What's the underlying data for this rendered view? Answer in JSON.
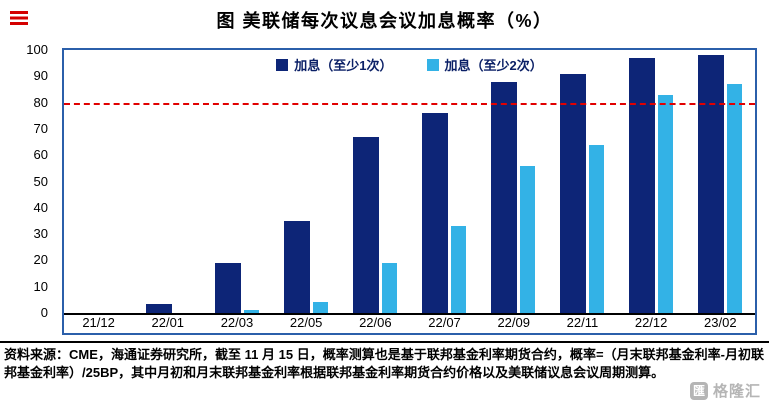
{
  "header": {
    "title": "图 美联储每次议息会议加息概率（%）"
  },
  "chart_data": {
    "type": "bar",
    "title": "图 美联储每次议息会议加息概率（%）",
    "categories": [
      "21/12",
      "22/01",
      "22/03",
      "22/05",
      "22/06",
      "22/07",
      "22/09",
      "22/11",
      "22/12",
      "23/02"
    ],
    "series": [
      {
        "name": "加息（至少1次）",
        "color": "#0d2577",
        "values": [
          0,
          3.5,
          19,
          35,
          67,
          76,
          88,
          91,
          97,
          98
        ]
      },
      {
        "name": "加息（至少2次）",
        "color": "#33b2e6",
        "values": [
          0,
          0,
          1,
          4,
          19,
          33,
          56,
          64,
          83,
          87
        ]
      }
    ],
    "ylim": [
      0,
      100
    ],
    "ytick_step": 10,
    "ref_line": {
      "value": 80,
      "color": "#e10000",
      "style": "dashed"
    },
    "legend_position": "top-center",
    "grid": false,
    "frame_color": "#2b5faa"
  },
  "footer": {
    "source_text": "资料来源：CME，海通证券研究所，截至 11 月 15 日，概率测算也是基于联邦基金利率期货合约，概率=（月末联邦基金利率-月初联邦基金利率）/25BP，其中月初和月末联邦基金利率根据联邦基金利率期货合约价格以及美联储议息会议周期测算。"
  },
  "watermark": {
    "icon": "匯",
    "text": "格隆汇"
  }
}
